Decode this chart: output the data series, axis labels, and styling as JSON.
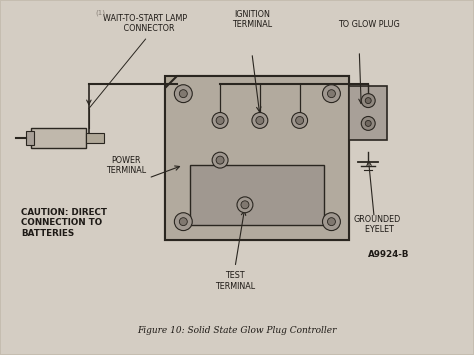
{
  "bg_color": "#c5bdb0",
  "paper_color": "#d4cdc3",
  "line_color": "#2a2620",
  "text_color": "#1e1a16",
  "title": "Figure 10: Solid State Glow Plug Controller",
  "figure_code": "A9924-B",
  "labels": {
    "wait_to_start": "WAIT-TO-START LAMP\n   CONNECTOR",
    "ignition": "IGNITION\nTERMINAL",
    "to_glow_plug": "TO GLOW PLUG",
    "power_terminal": "POWER\nTERMINAL",
    "caution": "CAUTION: DIRECT\nCONNECTION TO\nBATTERIES",
    "test_terminal": "TEST\nTERMINAL",
    "grounded_eyelet": "GROUNDED\n  EYELET"
  },
  "font_size": 5.8,
  "title_font_size": 6.5
}
